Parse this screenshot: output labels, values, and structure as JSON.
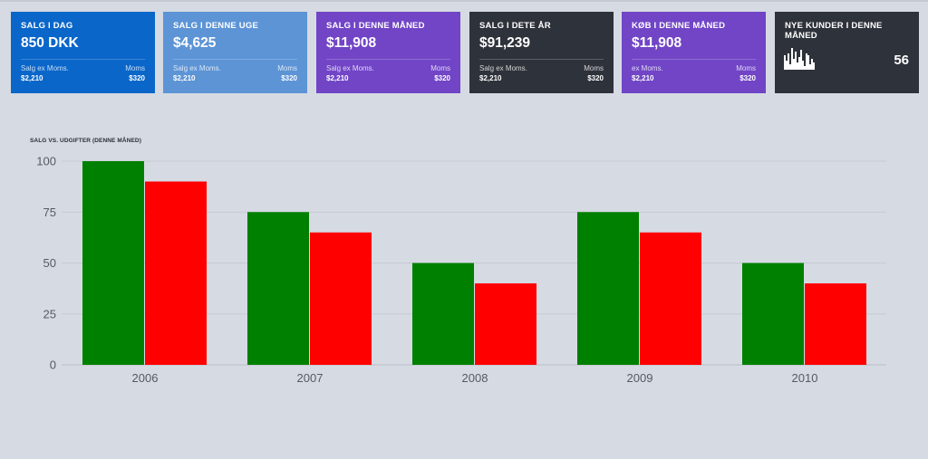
{
  "cards": [
    {
      "title": "SALG I DAG",
      "value": "850 DKK",
      "left_label": "Salg ex Moms.",
      "left_value": "$2,210",
      "right_label": "Moms",
      "right_value": "$320",
      "color": "#0a66c9"
    },
    {
      "title": "SALG I DENNE UGE",
      "value": "$4,625",
      "left_label": "Salg ex Moms.",
      "left_value": "$2,210",
      "right_label": "Moms",
      "right_value": "$320",
      "color": "#5c94d6"
    },
    {
      "title": "SALG I DENNE MÅNED",
      "value": "$11,908",
      "left_label": "Salg ex Moms.",
      "left_value": "$2,210",
      "right_label": "Moms",
      "right_value": "$320",
      "color": "#7145c6"
    },
    {
      "title": "SALG I DETE ÅR",
      "value": "$91,239",
      "left_label": "Salg ex Moms.",
      "left_value": "$2,210",
      "right_label": "Moms",
      "right_value": "$320",
      "color": "#2e323a"
    },
    {
      "title": "KØB I DENNE MÅNED",
      "value": "$11,908",
      "left_label": "ex Moms.",
      "left_value": "$2,210",
      "right_label": "Moms",
      "right_value": "$320",
      "color": "#7145c6"
    }
  ],
  "customers_card": {
    "title": "NYE KUNDER I DENNE MÅNED",
    "value": "56",
    "color": "#2e323a",
    "sparkline": [
      8,
      5,
      9,
      3,
      12,
      6,
      10,
      4,
      7,
      11,
      5,
      2,
      9,
      8,
      3,
      6,
      4
    ]
  },
  "chart_data": {
    "type": "bar",
    "title": "SALG VS. UDGIFTER (DENNE MÅNED)",
    "categories": [
      "2006",
      "2007",
      "2008",
      "2009",
      "2010"
    ],
    "series": [
      {
        "values": [
          100,
          75,
          50,
          75,
          50
        ],
        "color": "#008000"
      },
      {
        "values": [
          90,
          65,
          40,
          65,
          40
        ],
        "color": "#ff0000"
      }
    ],
    "ylim": [
      0,
      100
    ],
    "yticks": [
      0,
      25,
      50,
      75,
      100
    ],
    "grid": true
  }
}
